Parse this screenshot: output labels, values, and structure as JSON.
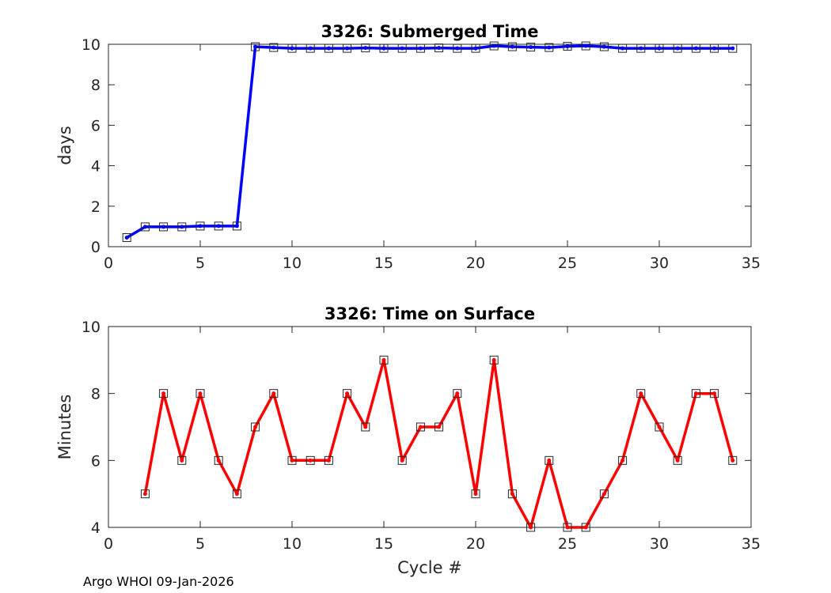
{
  "footer": "Argo WHOI 09-Jan-2026",
  "chart_data": [
    {
      "type": "line",
      "title": "3326: Submerged Time",
      "xlabel": "",
      "ylabel": "days",
      "xlim": [
        0,
        35
      ],
      "ylim": [
        0,
        10
      ],
      "xticks": [
        0,
        5,
        10,
        15,
        20,
        25,
        30,
        35
      ],
      "yticks": [
        0,
        2,
        4,
        6,
        8,
        10
      ],
      "grid": true,
      "color": "#0000ff",
      "marker": "square",
      "x": [
        1,
        2,
        3,
        4,
        5,
        6,
        7,
        8,
        9,
        10,
        11,
        12,
        13,
        14,
        15,
        16,
        17,
        18,
        19,
        20,
        21,
        22,
        23,
        24,
        25,
        26,
        27,
        28,
        29,
        30,
        31,
        32,
        33,
        34
      ],
      "y": [
        0.45,
        0.98,
        0.98,
        0.98,
        1.02,
        1.02,
        1.02,
        9.88,
        9.84,
        9.8,
        9.8,
        9.8,
        9.8,
        9.82,
        9.8,
        9.8,
        9.8,
        9.82,
        9.8,
        9.8,
        9.92,
        9.88,
        9.86,
        9.84,
        9.9,
        9.92,
        9.88,
        9.8,
        9.8,
        9.8,
        9.8,
        9.8,
        9.8,
        9.8
      ]
    },
    {
      "type": "line",
      "title": "3326: Time on Surface",
      "xlabel": "Cycle #",
      "ylabel": "Minutes",
      "xlim": [
        0,
        35
      ],
      "ylim": [
        4,
        10
      ],
      "xticks": [
        0,
        5,
        10,
        15,
        20,
        25,
        30,
        35
      ],
      "yticks": [
        4,
        6,
        8,
        10
      ],
      "grid": true,
      "color": "#ff0000",
      "marker": "square",
      "x": [
        2,
        3,
        4,
        5,
        6,
        7,
        8,
        9,
        10,
        11,
        12,
        13,
        14,
        15,
        16,
        17,
        18,
        19,
        20,
        21,
        22,
        23,
        24,
        25,
        26,
        27,
        28,
        29,
        30,
        31,
        32,
        33,
        34
      ],
      "y": [
        5,
        8,
        6,
        8,
        6,
        5,
        7,
        8,
        6,
        6,
        6,
        8,
        7,
        9,
        6,
        7,
        7,
        8,
        5,
        9,
        5,
        4,
        6,
        4,
        4,
        5,
        6,
        8,
        7,
        6,
        8,
        8,
        6
      ]
    }
  ]
}
